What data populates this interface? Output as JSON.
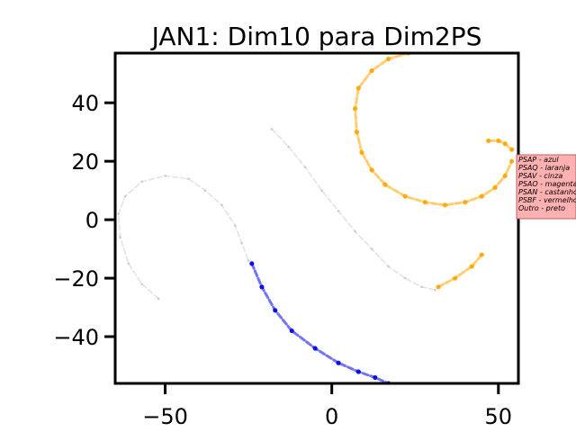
{
  "chart_data": {
    "type": "scatter",
    "title": "JAN1: Dim10 para Dim2PS",
    "xlabel": "",
    "ylabel": "",
    "xlim": [
      -65,
      56
    ],
    "ylim": [
      -56,
      57
    ],
    "xticks": [
      -50,
      0,
      50
    ],
    "yticks": [
      -40,
      -20,
      0,
      20,
      40
    ],
    "xtick_labels": [
      "−50",
      "0",
      "50"
    ],
    "ytick_labels": [
      "−40",
      "−20",
      "0",
      "20",
      "40"
    ],
    "grid": false,
    "legend": {
      "placement": "right, outside plot",
      "background": "#ffb0b0",
      "entries": [
        "PSAP - azul",
        "PSAQ - laranja",
        "PSAV - cinza",
        "PSAO - magenta",
        "PSAN - castanho",
        "PSBF - vermelho",
        "Outro - preto"
      ]
    },
    "series": [
      {
        "color": "#c8c8c8",
        "x": [
          -52,
          -57,
          -61,
          -63.5,
          -64,
          -62,
          -57,
          -50,
          -43,
          -38,
          -33,
          -29,
          -27,
          -25
        ],
        "y": [
          -27,
          -22,
          -15,
          -6,
          2,
          8,
          13,
          15,
          14,
          10,
          5,
          -2,
          -8,
          -14
        ]
      },
      {
        "color": "#0000ee",
        "x": [
          -24,
          -21,
          -17,
          -12,
          -5,
          2,
          8,
          13,
          17
        ],
        "y": [
          -15,
          -23,
          -31,
          -38,
          -44,
          -49,
          -52,
          -54,
          -56
        ]
      },
      {
        "color": "#c8c8c8",
        "x": [
          -18,
          -13,
          -8,
          -3,
          2,
          7,
          12,
          17,
          22,
          27,
          31
        ],
        "y": [
          31,
          25,
          18,
          10,
          3,
          -4,
          -10,
          -16,
          -20,
          -23,
          -24
        ]
      },
      {
        "color": "#ffa500",
        "x": [
          32,
          37,
          42,
          45
        ],
        "y": [
          -23,
          -20,
          -16,
          -12
        ]
      },
      {
        "color": "#ffa500",
        "x": [
          23,
          17,
          12,
          8,
          7,
          7.5,
          9,
          12,
          16,
          22,
          28,
          34,
          40,
          45,
          49,
          52,
          54
        ],
        "y": [
          57,
          55,
          51,
          45,
          38,
          30,
          23,
          17,
          12,
          8,
          6,
          5,
          6,
          8,
          11,
          15,
          20
        ]
      },
      {
        "color": "#ffa500",
        "x": [
          47,
          50,
          52,
          54
        ],
        "y": [
          27,
          27,
          26,
          24
        ]
      }
    ]
  }
}
